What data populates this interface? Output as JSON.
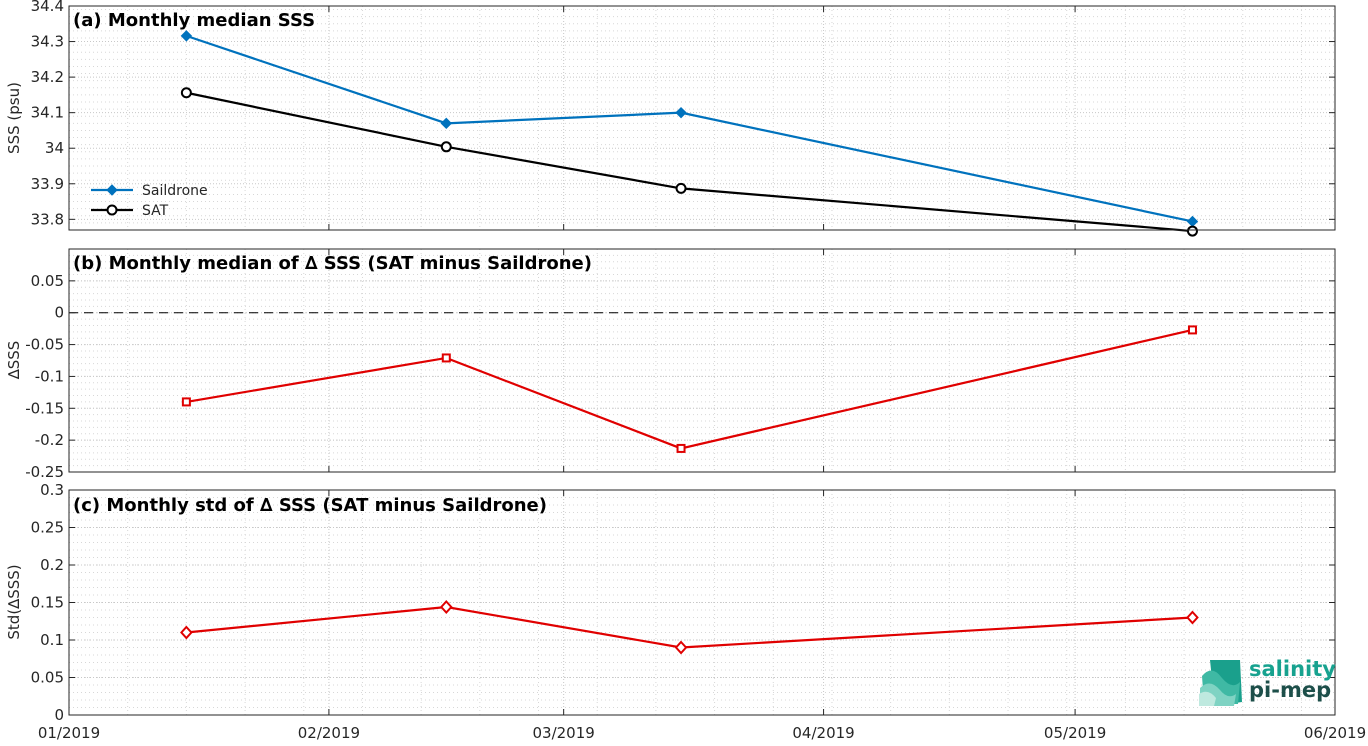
{
  "chart_data": [
    {
      "type": "line",
      "title": "(a) Monthly median SSS",
      "ylabel": "SSS (psu)",
      "xlabel": "",
      "x_tick_labels": [
        "01/2019",
        "02/2019",
        "03/2019",
        "04/2019",
        "05/2019",
        "06/2019"
      ],
      "x_range": [
        "2019-01-01",
        "2019-06-01"
      ],
      "ylim": [
        33.77,
        34.4
      ],
      "y_ticks": [
        33.8,
        33.9,
        34,
        34.1,
        34.2,
        34.3,
        34.4
      ],
      "y_tick_labels": [
        "33.8",
        "33.9",
        "34",
        "34.1",
        "34.2",
        "34.3",
        "34.4"
      ],
      "grid": true,
      "legend": "bottom-left",
      "x": [
        "2019-01-15",
        "2019-02-15",
        "2019-03-15",
        "2019-04-15",
        "2019-05-15"
      ],
      "series": [
        {
          "name": "Saildrone",
          "color": "#0072BD",
          "marker": "diamond-filled",
          "values": [
            34.316,
            34.07,
            34.1,
            null,
            33.794
          ]
        },
        {
          "name": "SAT",
          "color": "#000000",
          "marker": "circle-open",
          "values": [
            34.156,
            34.004,
            33.887,
            null,
            33.767
          ]
        }
      ]
    },
    {
      "type": "line",
      "title": "(b) Monthly median of ∆ SSS (SAT minus Saildrone)",
      "ylabel": "∆SSS",
      "xlabel": "",
      "ylim": [
        -0.25,
        0.1
      ],
      "y_ticks": [
        -0.25,
        -0.2,
        -0.15,
        -0.1,
        -0.05,
        0,
        0.05
      ],
      "y_tick_labels": [
        "-0.25",
        "-0.2",
        "-0.15",
        "-0.1",
        "-0.05",
        "0",
        "0.05"
      ],
      "grid": true,
      "reference_line": 0,
      "x": [
        "2019-01-15",
        "2019-02-15",
        "2019-03-15",
        "2019-04-15",
        "2019-05-15"
      ],
      "series": [
        {
          "color": "#e00000",
          "marker": "square-open",
          "values": [
            -0.14,
            -0.071,
            -0.213,
            null,
            -0.027
          ]
        }
      ]
    },
    {
      "type": "line",
      "title": "(c) Monthly std of ∆ SSS (SAT minus Saildrone)",
      "ylabel": "Std(∆SSS)",
      "xlabel": "",
      "ylim": [
        0,
        0.3
      ],
      "y_ticks": [
        0,
        0.05,
        0.1,
        0.15,
        0.2,
        0.25,
        0.3
      ],
      "y_tick_labels": [
        "0",
        "0.05",
        "0.1",
        "0.15",
        "0.2",
        "0.25",
        "0.3"
      ],
      "grid": true,
      "x": [
        "2019-01-15",
        "2019-02-15",
        "2019-03-15",
        "2019-04-15",
        "2019-05-15"
      ],
      "series": [
        {
          "color": "#e00000",
          "marker": "diamond-open",
          "values": [
            0.11,
            0.144,
            0.09,
            null,
            0.13
          ]
        }
      ]
    }
  ],
  "logo": {
    "line1": "salinity",
    "line2": "pi-mep"
  }
}
